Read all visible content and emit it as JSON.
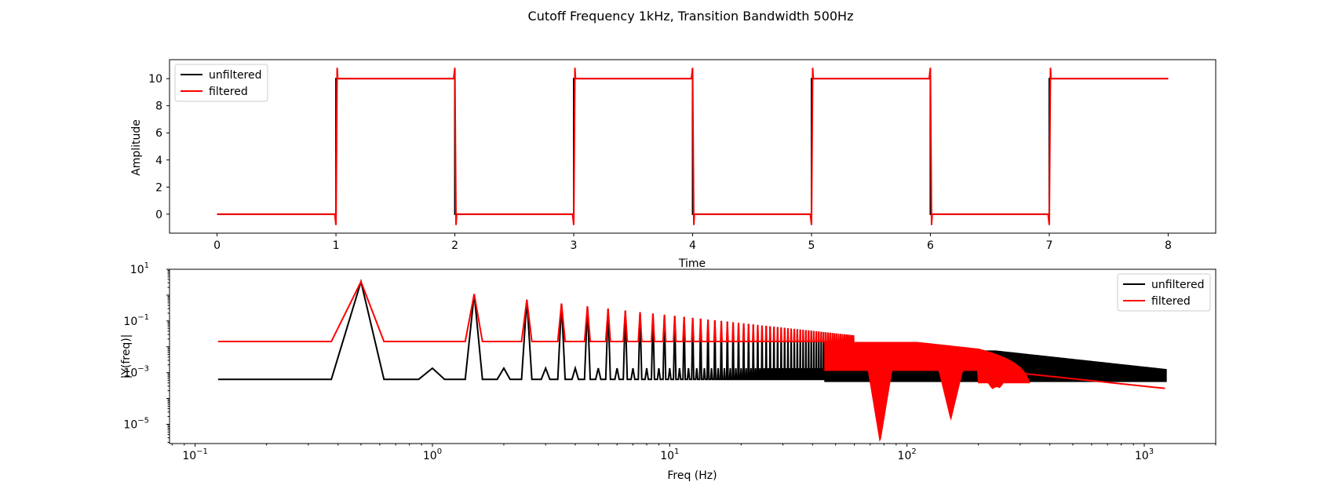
{
  "figure": {
    "title": "Cutoff Frequency 1kHz, Transition Bandwidth 500Hz"
  },
  "chart_data": [
    {
      "type": "line",
      "xlabel": "Time",
      "ylabel": "Amplitude",
      "xlim": [
        -0.4,
        8.4
      ],
      "ylim": [
        -1.4,
        11.4
      ],
      "xticks": [
        0,
        1,
        2,
        3,
        4,
        5,
        6,
        7,
        8
      ],
      "xtick_labels": [
        "0",
        "1",
        "2",
        "3",
        "4",
        "5",
        "6",
        "7",
        "8"
      ],
      "yticks": [
        0,
        2,
        4,
        6,
        8,
        10
      ],
      "ytick_labels": [
        "0",
        "2",
        "4",
        "6",
        "8",
        "10"
      ],
      "legend": {
        "placement": "upper-left",
        "entries": [
          "unfiltered",
          "filtered"
        ]
      },
      "grid": false,
      "series": [
        {
          "name": "unfiltered",
          "color": "#000000",
          "x": [
            0,
            1,
            1,
            2,
            2,
            3,
            3,
            4,
            4,
            5,
            5,
            6,
            6,
            7,
            7,
            8
          ],
          "y": [
            0,
            0,
            10,
            10,
            0,
            0,
            10,
            10,
            0,
            0,
            10,
            10,
            0,
            0,
            10,
            10
          ]
        },
        {
          "name": "filtered",
          "color": "#ff0000",
          "x": [
            0,
            0.99,
            1.0,
            1.01,
            1.015,
            1.02,
            1.99,
            2.0,
            2.01,
            2.015,
            2.02,
            2.99,
            3.0,
            3.01,
            3.015,
            3.02,
            3.99,
            4.0,
            4.01,
            4.015,
            4.02,
            4.99,
            5.0,
            5.01,
            5.015,
            5.02,
            5.99,
            6.0,
            6.01,
            6.015,
            6.02,
            6.99,
            7.0,
            7.01,
            7.015,
            7.02,
            8.0
          ],
          "y": [
            0,
            0,
            -0.8,
            10.8,
            10,
            10,
            10,
            10.8,
            -0.8,
            0,
            0,
            0,
            -0.8,
            10.8,
            10,
            10,
            10,
            10.8,
            -0.8,
            0,
            0,
            0,
            -0.8,
            10.8,
            10,
            10,
            10,
            10.8,
            -0.8,
            0,
            0,
            0,
            -0.8,
            10.8,
            10,
            10,
            10
          ]
        }
      ]
    },
    {
      "type": "line",
      "xlabel": "Freq (Hz)",
      "ylabel": "|Y(freq)|",
      "xscale": "log",
      "yscale": "log",
      "xlim": [
        0.078,
        2000
      ],
      "ylim": [
        1.8e-06,
        10
      ],
      "xtick_values": [
        0.1,
        1,
        10,
        100,
        1000
      ],
      "xticks": [
        [
          "10",
          "−1"
        ],
        [
          "10",
          "0"
        ],
        [
          "10",
          "1"
        ],
        [
          "10",
          "2"
        ],
        [
          "10",
          "3"
        ]
      ],
      "ytick_values": [
        1e-05,
        0.001,
        0.1,
        10
      ],
      "yticks": [
        [
          "10",
          "−5"
        ],
        [
          "10",
          "−3"
        ],
        [
          "10",
          "−1"
        ],
        [
          "10",
          "1"
        ]
      ],
      "legend": {
        "placement": "upper-right",
        "entries": [
          "unfiltered",
          "filtered"
        ]
      },
      "grid": false,
      "series": [
        {
          "name": "unfiltered",
          "color": "#000000",
          "baseline": 0.00055,
          "fundamental": {
            "x": 0.5,
            "y": 3.3
          },
          "harmonic_peak_scale": 3.3,
          "envelope_falloff_from_hz": 40,
          "band_floor": 0.00045,
          "f_max": 1250
        },
        {
          "name": "filtered",
          "color": "#ff0000",
          "baseline": 0.016,
          "fundamental": {
            "x": 0.5,
            "y": 3.3
          },
          "harmonic_peak_scale": 3.3,
          "nulls_hz": [
            77,
            153,
            230,
            245
          ],
          "null_min": [
            2e-06,
            1.5e-05,
            0.00022,
            0.00026
          ],
          "high_freq_floor": 0.00024,
          "f_max": 1250
        }
      ]
    }
  ]
}
